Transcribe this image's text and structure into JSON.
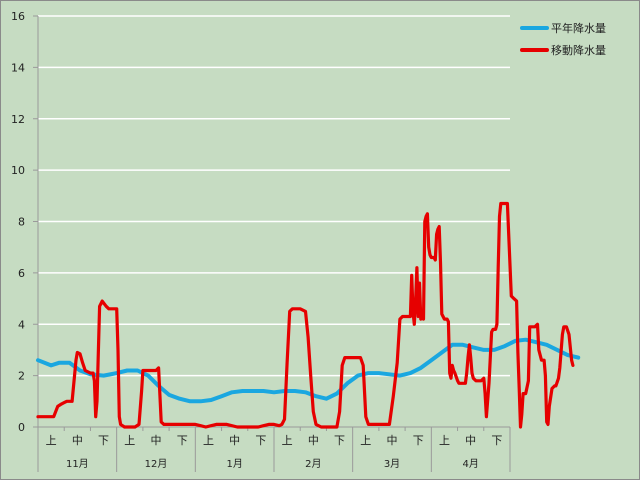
{
  "chart_data": {
    "type": "line",
    "title": "",
    "xlabel": "",
    "ylabel": "",
    "ylim": [
      0,
      16
    ],
    "yticks": [
      "0",
      "2",
      "4",
      "6",
      "8",
      "10",
      "12",
      "14",
      "16"
    ],
    "grid": true,
    "legend_position": "top-right",
    "x_axis": {
      "months": [
        {
          "label": "11月",
          "periods": [
            "上",
            "中",
            "下"
          ]
        },
        {
          "label": "12月",
          "periods": [
            "上",
            "中",
            "下"
          ]
        },
        {
          "label": "1月",
          "periods": [
            "上",
            "中",
            "下"
          ]
        },
        {
          "label": "2月",
          "periods": [
            "上",
            "中",
            "下"
          ]
        },
        {
          "label": "3月",
          "periods": [
            "上",
            "中",
            "下"
          ]
        },
        {
          "label": "4月",
          "periods": [
            "上",
            "中",
            "下"
          ]
        }
      ]
    },
    "series": [
      {
        "name": "平年降水量",
        "color": "#1aa7e0",
        "points": [
          [
            0.0,
            2.6
          ],
          [
            0.5,
            2.4
          ],
          [
            0.8,
            2.5
          ],
          [
            1.2,
            2.5
          ],
          [
            1.6,
            2.2
          ],
          [
            2.0,
            2.05
          ],
          [
            2.5,
            2.0
          ],
          [
            3.0,
            2.1
          ],
          [
            3.4,
            2.2
          ],
          [
            3.8,
            2.2
          ],
          [
            4.2,
            2.0
          ],
          [
            4.6,
            1.6
          ],
          [
            5.0,
            1.25
          ],
          [
            5.4,
            1.1
          ],
          [
            5.8,
            1.0
          ],
          [
            6.2,
            1.0
          ],
          [
            6.6,
            1.05
          ],
          [
            7.0,
            1.2
          ],
          [
            7.4,
            1.35
          ],
          [
            7.8,
            1.4
          ],
          [
            8.2,
            1.4
          ],
          [
            8.6,
            1.4
          ],
          [
            9.0,
            1.35
          ],
          [
            9.4,
            1.4
          ],
          [
            9.8,
            1.4
          ],
          [
            10.2,
            1.35
          ],
          [
            10.6,
            1.2
          ],
          [
            11.0,
            1.1
          ],
          [
            11.4,
            1.3
          ],
          [
            11.8,
            1.7
          ],
          [
            12.2,
            2.0
          ],
          [
            12.6,
            2.1
          ],
          [
            13.0,
            2.1
          ],
          [
            13.4,
            2.05
          ],
          [
            13.8,
            2.0
          ],
          [
            14.2,
            2.1
          ],
          [
            14.6,
            2.3
          ],
          [
            15.0,
            2.6
          ],
          [
            15.4,
            2.9
          ],
          [
            15.8,
            3.2
          ],
          [
            16.2,
            3.2
          ],
          [
            16.6,
            3.1
          ],
          [
            17.0,
            3.0
          ],
          [
            17.4,
            3.0
          ],
          [
            17.8,
            3.15
          ],
          [
            18.2,
            3.35
          ],
          [
            18.6,
            3.4
          ],
          [
            19.0,
            3.3
          ],
          [
            19.4,
            3.2
          ],
          [
            19.8,
            3.0
          ],
          [
            20.2,
            2.8
          ],
          [
            20.6,
            2.7
          ]
        ]
      },
      {
        "name": "移動降水量",
        "color": "#e60000",
        "points": [
          [
            0.0,
            0.4
          ],
          [
            0.4,
            0.4
          ],
          [
            0.6,
            0.4
          ],
          [
            0.75,
            0.8
          ],
          [
            0.9,
            0.9
          ],
          [
            1.0,
            0.95
          ],
          [
            1.1,
            1.0
          ],
          [
            1.3,
            1.0
          ],
          [
            1.45,
            2.6
          ],
          [
            1.5,
            2.9
          ],
          [
            1.6,
            2.85
          ],
          [
            1.7,
            2.5
          ],
          [
            1.8,
            2.2
          ],
          [
            2.0,
            2.1
          ],
          [
            2.1,
            2.1
          ],
          [
            2.15,
            1.8
          ],
          [
            2.2,
            0.4
          ],
          [
            2.25,
            1.0
          ],
          [
            2.35,
            4.7
          ],
          [
            2.45,
            4.9
          ],
          [
            2.6,
            4.7
          ],
          [
            2.7,
            4.6
          ],
          [
            2.8,
            4.6
          ],
          [
            2.9,
            4.6
          ],
          [
            3.0,
            4.6
          ],
          [
            3.05,
            3.0
          ],
          [
            3.1,
            0.4
          ],
          [
            3.15,
            0.1
          ],
          [
            3.3,
            0.0
          ],
          [
            3.7,
            0.0
          ],
          [
            3.85,
            0.1
          ],
          [
            3.95,
            1.4
          ],
          [
            4.0,
            2.2
          ],
          [
            4.3,
            2.2
          ],
          [
            4.5,
            2.2
          ],
          [
            4.6,
            2.3
          ],
          [
            4.7,
            0.2
          ],
          [
            4.8,
            0.1
          ],
          [
            5.0,
            0.1
          ],
          [
            5.5,
            0.1
          ],
          [
            6.0,
            0.1
          ],
          [
            6.2,
            0.05
          ],
          [
            6.4,
            0.0
          ],
          [
            6.6,
            0.05
          ],
          [
            6.8,
            0.1
          ],
          [
            7.2,
            0.1
          ],
          [
            7.6,
            0.0
          ],
          [
            8.0,
            0.0
          ],
          [
            8.4,
            0.0
          ],
          [
            8.6,
            0.05
          ],
          [
            8.8,
            0.1
          ],
          [
            9.0,
            0.1
          ],
          [
            9.2,
            0.05
          ],
          [
            9.3,
            0.1
          ],
          [
            9.4,
            0.3
          ],
          [
            9.5,
            2.5
          ],
          [
            9.6,
            4.5
          ],
          [
            9.7,
            4.6
          ],
          [
            9.8,
            4.6
          ],
          [
            9.9,
            4.6
          ],
          [
            10.0,
            4.6
          ],
          [
            10.2,
            4.5
          ],
          [
            10.3,
            3.5
          ],
          [
            10.4,
            2.0
          ],
          [
            10.5,
            0.6
          ],
          [
            10.6,
            0.1
          ],
          [
            10.8,
            0.0
          ],
          [
            11.0,
            0.0
          ],
          [
            11.2,
            0.0
          ],
          [
            11.4,
            0.0
          ],
          [
            11.5,
            0.6
          ],
          [
            11.6,
            2.4
          ],
          [
            11.7,
            2.7
          ],
          [
            11.9,
            2.7
          ],
          [
            12.1,
            2.7
          ],
          [
            12.3,
            2.7
          ],
          [
            12.4,
            2.4
          ],
          [
            12.5,
            0.4
          ],
          [
            12.6,
            0.1
          ],
          [
            12.8,
            0.1
          ],
          [
            13.2,
            0.1
          ],
          [
            13.4,
            0.1
          ],
          [
            13.55,
            1.2
          ],
          [
            13.7,
            2.5
          ],
          [
            13.8,
            4.2
          ],
          [
            13.9,
            4.3
          ],
          [
            14.1,
            4.3
          ],
          [
            14.2,
            4.3
          ],
          [
            14.25,
            5.9
          ],
          [
            14.3,
            4.5
          ],
          [
            14.35,
            4.0
          ],
          [
            14.4,
            4.9
          ],
          [
            14.45,
            6.2
          ],
          [
            14.5,
            4.3
          ],
          [
            14.55,
            5.6
          ],
          [
            14.6,
            4.2
          ],
          [
            14.65,
            4.3
          ],
          [
            14.7,
            4.2
          ],
          [
            14.75,
            8.0
          ],
          [
            14.8,
            8.2
          ],
          [
            14.85,
            8.3
          ],
          [
            14.9,
            7.0
          ],
          [
            14.95,
            6.7
          ],
          [
            15.0,
            6.6
          ],
          [
            15.1,
            6.6
          ],
          [
            15.15,
            6.5
          ],
          [
            15.2,
            7.5
          ],
          [
            15.25,
            7.7
          ],
          [
            15.3,
            7.8
          ],
          [
            15.35,
            6.4
          ],
          [
            15.4,
            4.4
          ],
          [
            15.5,
            4.2
          ],
          [
            15.6,
            4.2
          ],
          [
            15.65,
            4.1
          ],
          [
            15.7,
            2.1
          ],
          [
            15.75,
            1.9
          ],
          [
            15.8,
            2.4
          ],
          [
            15.85,
            2.2
          ],
          [
            15.9,
            2.1
          ],
          [
            16.0,
            1.8
          ],
          [
            16.05,
            1.7
          ],
          [
            16.2,
            1.7
          ],
          [
            16.3,
            1.7
          ],
          [
            16.35,
            2.1
          ],
          [
            16.4,
            2.7
          ],
          [
            16.45,
            3.2
          ],
          [
            16.5,
            2.7
          ],
          [
            16.55,
            2.1
          ],
          [
            16.6,
            1.9
          ],
          [
            16.7,
            1.8
          ],
          [
            16.8,
            1.8
          ],
          [
            16.9,
            1.8
          ],
          [
            17.0,
            1.9
          ],
          [
            17.05,
            1.3
          ],
          [
            17.1,
            0.4
          ],
          [
            17.2,
            1.7
          ],
          [
            17.3,
            3.7
          ],
          [
            17.35,
            3.8
          ],
          [
            17.45,
            3.8
          ],
          [
            17.5,
            4.0
          ],
          [
            17.55,
            6.2
          ],
          [
            17.6,
            8.2
          ],
          [
            17.65,
            8.7
          ],
          [
            17.9,
            8.7
          ],
          [
            17.95,
            7.5
          ],
          [
            18.05,
            5.1
          ],
          [
            18.15,
            5.0
          ],
          [
            18.25,
            4.9
          ],
          [
            18.3,
            2.9
          ],
          [
            18.35,
            1.5
          ],
          [
            18.4,
            0.0
          ],
          [
            18.45,
            0.5
          ],
          [
            18.5,
            1.3
          ],
          [
            18.6,
            1.3
          ],
          [
            18.7,
            1.8
          ],
          [
            18.75,
            3.9
          ],
          [
            18.85,
            3.9
          ],
          [
            18.95,
            3.9
          ],
          [
            19.05,
            4.0
          ],
          [
            19.1,
            3.0
          ],
          [
            19.2,
            2.6
          ],
          [
            19.3,
            2.6
          ],
          [
            19.35,
            2.0
          ],
          [
            19.4,
            0.2
          ],
          [
            19.45,
            0.1
          ],
          [
            19.5,
            0.8
          ],
          [
            19.6,
            1.5
          ],
          [
            19.7,
            1.6
          ],
          [
            19.75,
            1.6
          ],
          [
            19.85,
            1.9
          ],
          [
            19.9,
            2.3
          ],
          [
            20.0,
            3.6
          ],
          [
            20.05,
            3.9
          ],
          [
            20.15,
            3.9
          ],
          [
            20.25,
            3.6
          ],
          [
            20.35,
            2.6
          ],
          [
            20.4,
            2.4
          ]
        ]
      }
    ]
  }
}
